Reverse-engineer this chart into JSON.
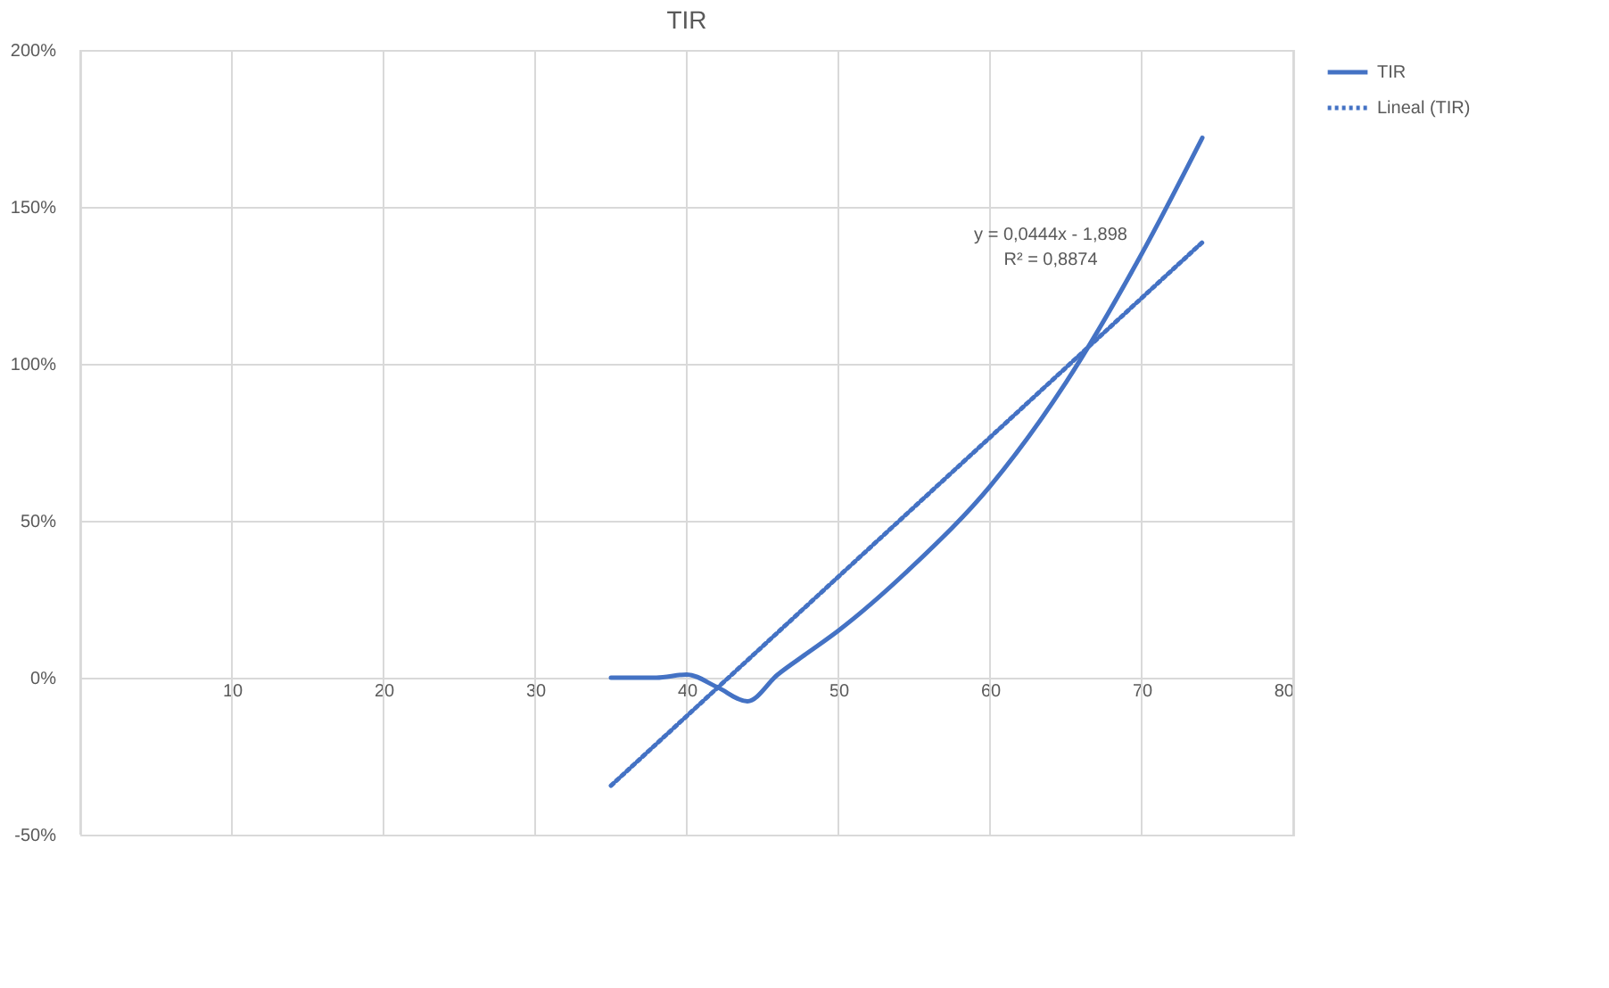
{
  "chart_data": {
    "type": "line",
    "title": "TIR",
    "xlim": [
      0,
      80
    ],
    "xticks": [
      10,
      20,
      30,
      40,
      50,
      60,
      70,
      80
    ],
    "ylim": [
      -50,
      200
    ],
    "yticks": [
      {
        "value": -50,
        "label": "-50%"
      },
      {
        "value": 0,
        "label": "0%"
      },
      {
        "value": 50,
        "label": "50%"
      },
      {
        "value": 100,
        "label": "100%"
      },
      {
        "value": 150,
        "label": "150%"
      },
      {
        "value": 200,
        "label": "200%"
      }
    ],
    "grid": true,
    "legend": "right",
    "marker": "none",
    "series": [
      {
        "name": "TIR",
        "color": "#4472c4",
        "line_style": "solid",
        "x": [
          35,
          38,
          40,
          42,
          44,
          46,
          48,
          50,
          55,
          60,
          65,
          70,
          74
        ],
        "values": [
          0,
          0,
          1,
          -3,
          -7.5,
          1,
          8,
          15,
          36,
          61,
          94,
          135,
          172
        ]
      },
      {
        "name": "Lineal (TIR)",
        "color": "#4472c4",
        "line_style": "dotted",
        "x": [
          35,
          74
        ],
        "values": [
          -34.4,
          138.7
        ]
      }
    ],
    "annotations": [
      "y = 0,0444x - 1,898",
      "R² = 0,8874"
    ]
  }
}
